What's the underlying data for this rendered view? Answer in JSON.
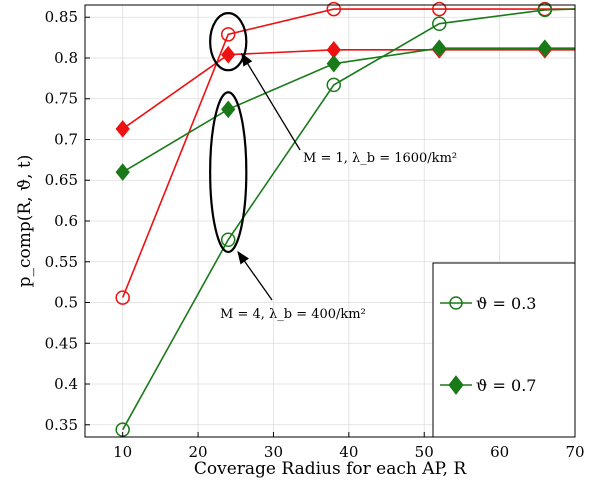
{
  "chart_data": {
    "type": "line",
    "xlabel": "Coverage Radius for each AP, R",
    "ylabel": "p_comp(R, ϑ, t)",
    "xlim": [
      5,
      70
    ],
    "ylim": [
      0.335,
      0.865
    ],
    "xticks": [
      10,
      20,
      30,
      40,
      50,
      60,
      70
    ],
    "yticks": [
      0.35,
      0.4,
      0.45,
      0.5,
      0.55,
      0.6,
      0.65,
      0.7,
      0.75,
      0.8,
      0.85
    ],
    "grid": true,
    "legend_position": "bottom-right",
    "legend": [
      "ϑ = 0.3",
      "ϑ = 0.7"
    ],
    "series": [
      {
        "group": "M=1",
        "marker": "circle",
        "color": "#ee1111",
        "x": [
          10,
          24,
          38,
          52,
          66,
          70
        ],
        "y": [
          0.506,
          0.829,
          0.86,
          0.86,
          0.86,
          0.86
        ]
      },
      {
        "group": "M=1",
        "marker": "diamond",
        "color": "#ee1111",
        "x": [
          10,
          24,
          38,
          52,
          66,
          70
        ],
        "y": [
          0.713,
          0.804,
          0.81,
          0.81,
          0.81,
          0.81
        ]
      },
      {
        "group": "M=4",
        "marker": "circle",
        "color": "#1a7a1a",
        "x": [
          10,
          24,
          38,
          52,
          66,
          70
        ],
        "y": [
          0.344,
          0.577,
          0.767,
          0.842,
          0.859,
          0.86
        ]
      },
      {
        "group": "M=4",
        "marker": "diamond",
        "color": "#1a7a1a",
        "x": [
          10,
          24,
          38,
          52,
          66,
          70
        ],
        "y": [
          0.66,
          0.737,
          0.793,
          0.812,
          0.812,
          0.812
        ]
      }
    ],
    "annotations": [
      {
        "text": "M = 1, λ_b = 1600/km²",
        "ellipse_center": [
          24,
          0.82
        ],
        "ellipse_radii": [
          2.4,
          0.035
        ],
        "arrow_to": [
          25.8,
          0.805
        ]
      },
      {
        "text": "M = 4, λ_b = 400/km²",
        "ellipse_center": [
          24,
          0.66
        ],
        "ellipse_radii": [
          2.4,
          0.098
        ],
        "arrow_to": [
          25.3,
          0.562
        ]
      }
    ]
  },
  "colors": {
    "red": "#ee1111",
    "green": "#1a7a1a"
  }
}
